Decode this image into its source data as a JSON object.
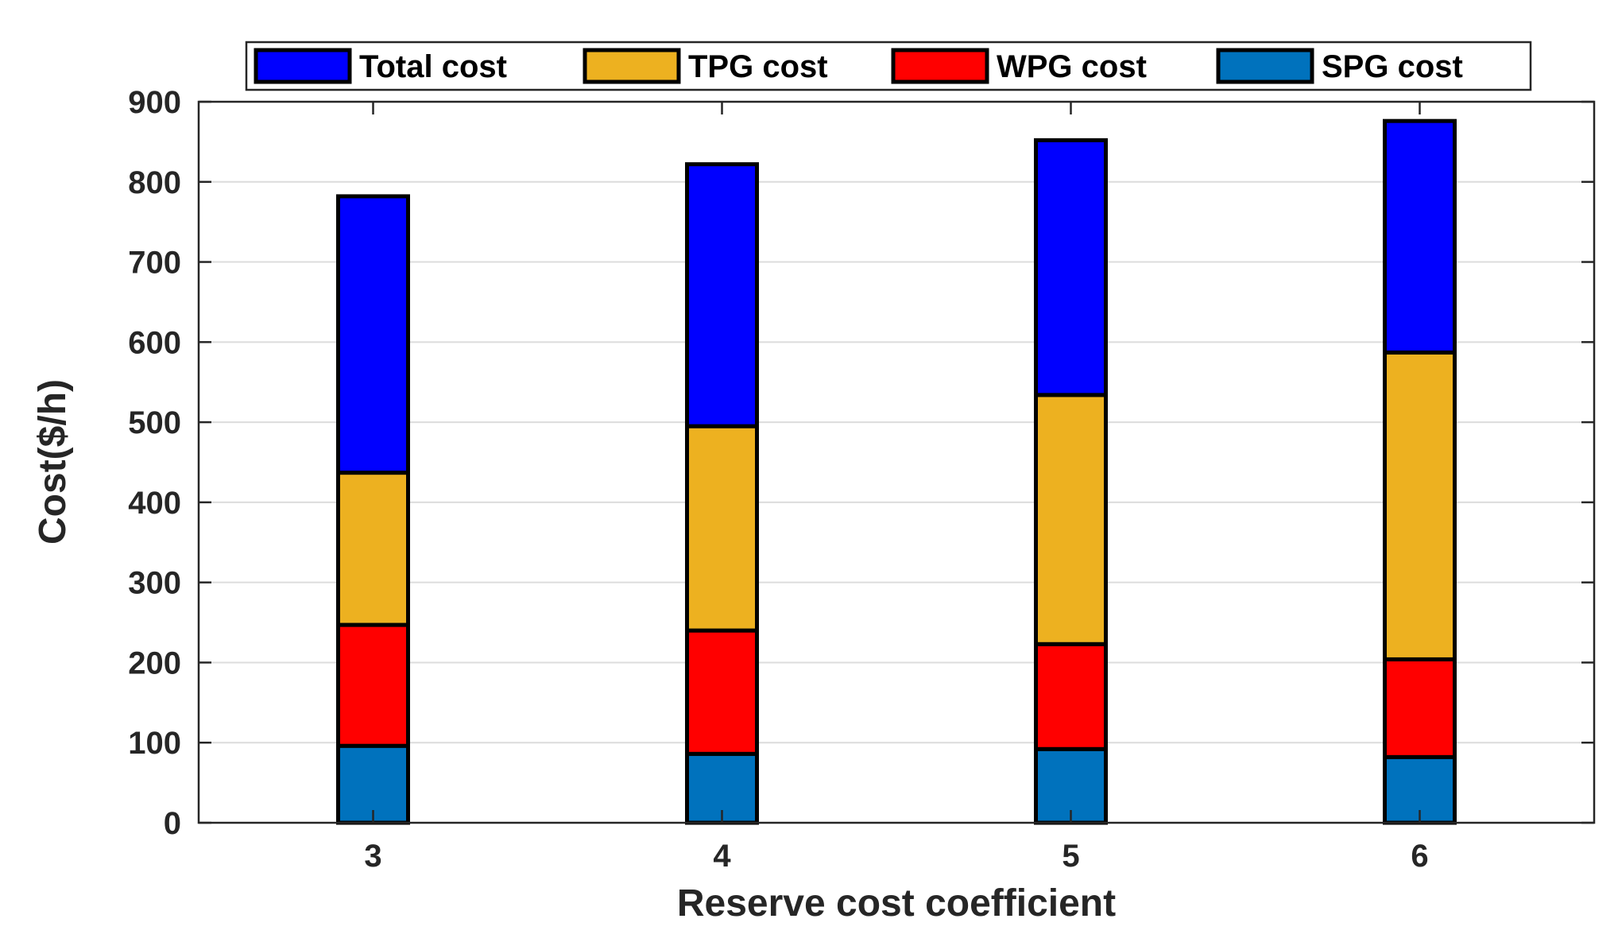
{
  "chart_data": {
    "type": "bar",
    "stacked": true,
    "title": "",
    "xlabel": "Reserve cost coefficient",
    "ylabel": "Cost($/h)",
    "categories": [
      "3",
      "4",
      "5",
      "6"
    ],
    "ylim": [
      0,
      900
    ],
    "yticks": [
      0,
      100,
      200,
      300,
      400,
      500,
      600,
      700,
      800,
      900
    ],
    "ytick_labels": [
      "0",
      "100",
      "200",
      "300",
      "400",
      "500",
      "600",
      "700",
      "800",
      "900"
    ],
    "grid": "y",
    "legend_position": "top",
    "series": [
      {
        "name": "SPG cost",
        "color": "#0072BD",
        "values": [
          96,
          86,
          92,
          82
        ]
      },
      {
        "name": "WPG cost",
        "color": "#FF0000",
        "values": [
          151,
          154,
          131,
          122
        ]
      },
      {
        "name": "TPG cost",
        "color": "#EDB120",
        "values": [
          190,
          255,
          311,
          383
        ]
      },
      {
        "name": "Total cost",
        "color": "#0000FF",
        "values": [
          345,
          327,
          318,
          289
        ]
      }
    ],
    "legend_order": [
      "Total cost",
      "TPG cost",
      "WPG cost",
      "SPG cost"
    ]
  }
}
